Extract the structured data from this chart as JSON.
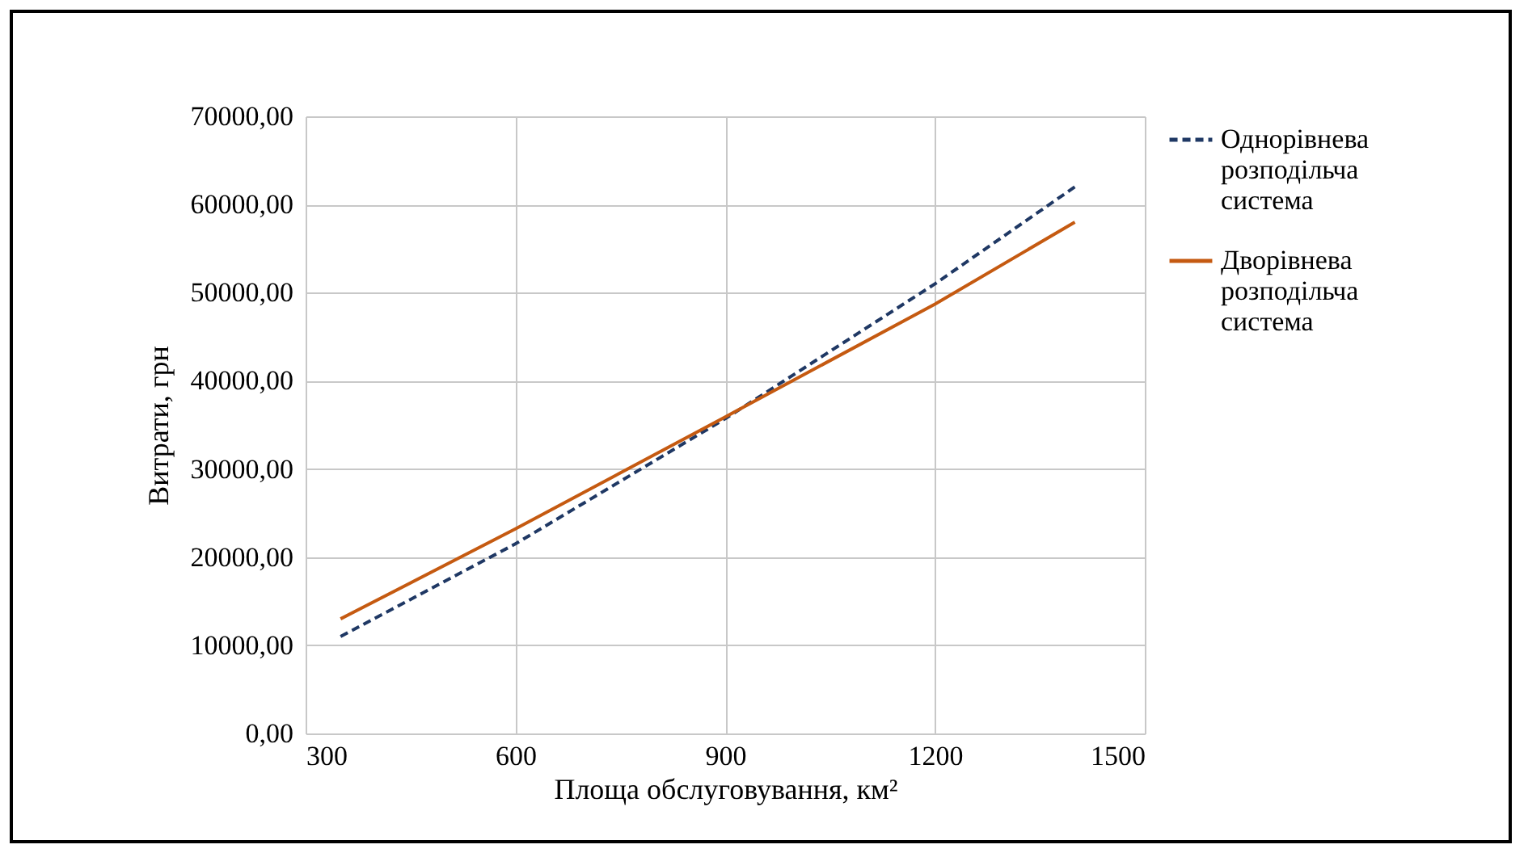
{
  "chart_data": {
    "type": "line",
    "xlabel": "Площа обслуговування, км²",
    "ylabel": "Витрати, грн",
    "xlim": [
      300,
      1500
    ],
    "xticks": [
      300,
      600,
      900,
      1200,
      1500
    ],
    "ylim": [
      0,
      70000
    ],
    "yticks": [
      {
        "value": 0,
        "label": "0,00"
      },
      {
        "value": 10000,
        "label": "10000,00"
      },
      {
        "value": 20000,
        "label": "20000,00"
      },
      {
        "value": 30000,
        "label": "30000,00"
      },
      {
        "value": 40000,
        "label": "40000,00"
      },
      {
        "value": 50000,
        "label": "50000,00"
      },
      {
        "value": 60000,
        "label": "60000,00"
      },
      {
        "value": 70000,
        "label": "70000,00"
      }
    ],
    "grid": true,
    "legend": "right",
    "marker": "none",
    "x": [
      350,
      600,
      900,
      1200,
      1400
    ],
    "series": [
      {
        "name": "Однорівнева розподільча система",
        "color": "#1f3864",
        "line_style": "dashed",
        "values": [
          11000,
          21500,
          35700,
          51000,
          62000
        ]
      },
      {
        "name": "Дворівнева розподільча система",
        "color": "#c55a11",
        "line_style": "solid",
        "values": [
          13000,
          23200,
          35900,
          48700,
          58000
        ]
      }
    ]
  }
}
